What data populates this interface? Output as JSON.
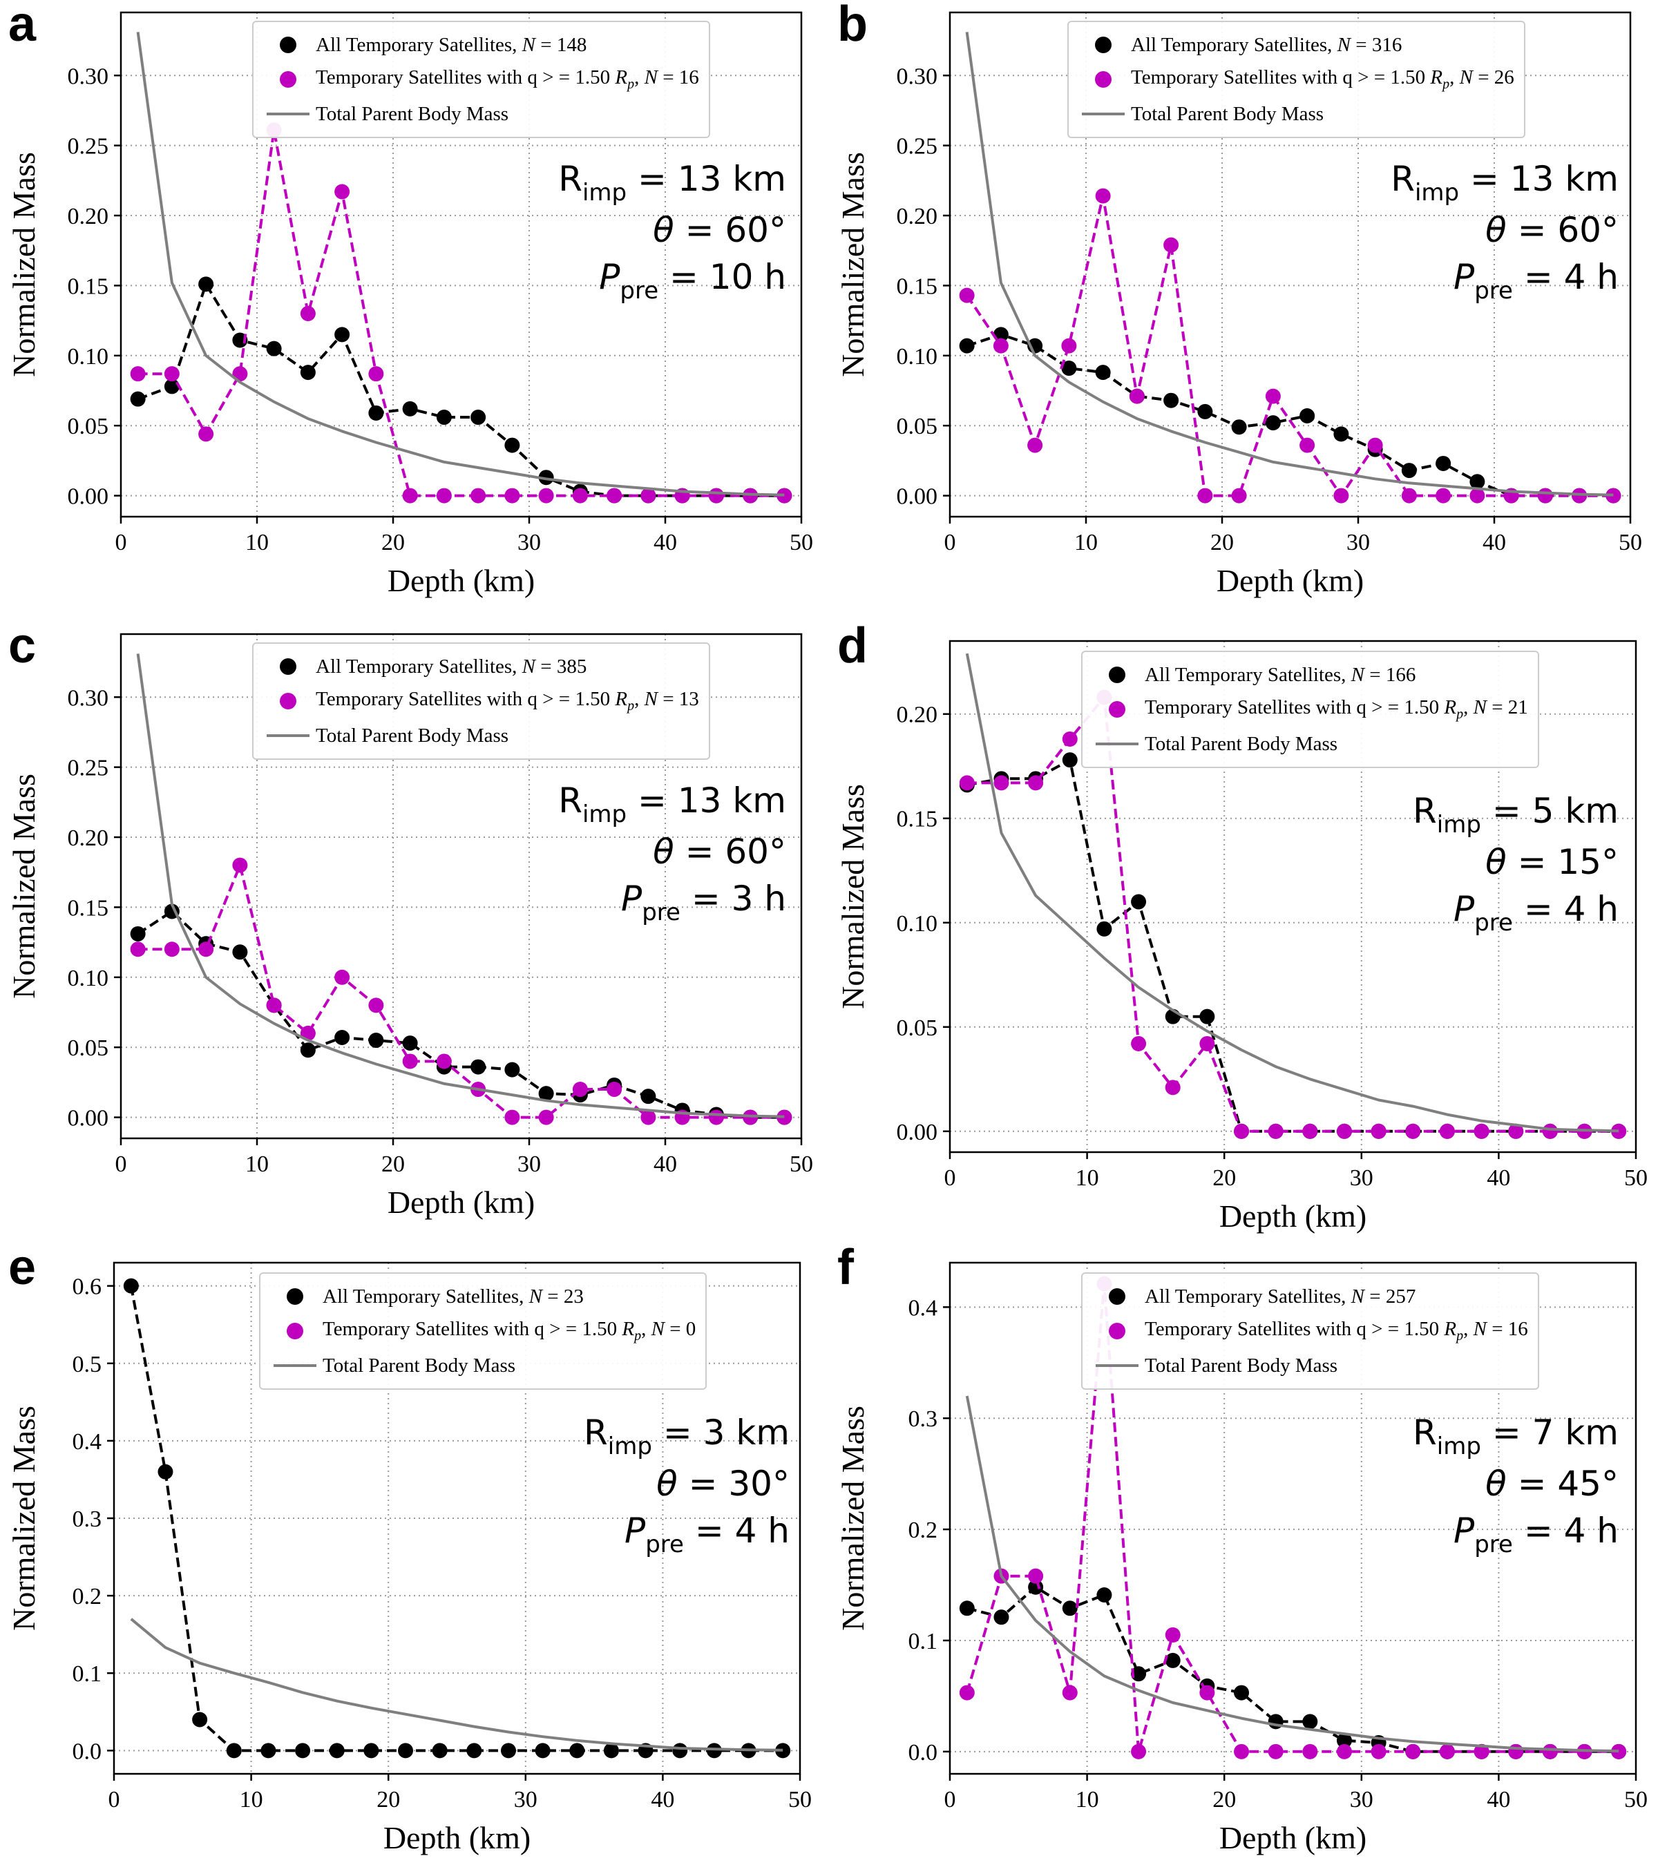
{
  "colors": {
    "all": "#000000",
    "high_q": "#bf00bf",
    "parent": "#7f7f7f",
    "grid": "#999999"
  },
  "chart_data": [
    {
      "id": "a",
      "type": "line",
      "letter": "a",
      "xlabel": "Depth (km)",
      "ylabel": "Normalized Mass",
      "xlim": [
        0,
        50
      ],
      "ylim": [
        -0.015,
        0.345
      ],
      "xticks": [
        0,
        10,
        20,
        30,
        40,
        50
      ],
      "xtick_labels": [
        "0",
        "10",
        "20",
        "30",
        "40",
        "50"
      ],
      "yticks": [
        0,
        0.05,
        0.1,
        0.15,
        0.2,
        0.25,
        0.3
      ],
      "ytick_labels": [
        "0.00",
        "0.05",
        "0.10",
        "0.15",
        "0.20",
        "0.25",
        "0.30"
      ],
      "x": [
        1.25,
        3.75,
        6.25,
        8.75,
        11.25,
        13.75,
        16.25,
        18.75,
        21.25,
        23.75,
        26.25,
        28.75,
        31.25,
        33.75,
        36.25,
        38.75,
        41.25,
        43.75,
        46.25,
        48.75
      ],
      "series": [
        {
          "name": "All Temporary Satellites",
          "n": "148",
          "style": "dashed-markers",
          "color": "#000000",
          "values": [
            0.069,
            0.078,
            0.151,
            0.111,
            0.105,
            0.088,
            0.115,
            0.059,
            0.062,
            0.056,
            0.056,
            0.036,
            0.013,
            0.003,
            0,
            0,
            0,
            0,
            0,
            0
          ]
        },
        {
          "name": "Temporary Satellites with q",
          "n": "16",
          "style": "dashed-markers",
          "color": "#bf00bf",
          "values": [
            0.087,
            0.087,
            0.044,
            0.087,
            0.261,
            0.13,
            0.217,
            0.087,
            0,
            0,
            0,
            0,
            0,
            0,
            0,
            0,
            0,
            0,
            0,
            0
          ]
        },
        {
          "name": "Total Parent Body Mass",
          "style": "line",
          "color": "#7f7f7f",
          "values": [
            0.331,
            0.152,
            0.1,
            0.081,
            0.067,
            0.055,
            0.046,
            0.038,
            0.031,
            0.024,
            0.02,
            0.016,
            0.012,
            0.009,
            0.007,
            0.005,
            0.003,
            0.002,
            0.001,
            0.0005
          ]
        }
      ],
      "legend": [
        {
          "prefix": "All Temporary Satellites, ",
          "nvar": "N",
          "mid": " = ",
          "nval": "148"
        },
        {
          "prefix": "Temporary Satellites with q > = 1.50 ",
          "rvar": "R",
          "rsub": "p",
          "mid": ", ",
          "nvar": "N",
          "eq": " = ",
          "nval": "16"
        },
        {
          "prefix": "Total Parent Body Mass"
        }
      ],
      "params": {
        "r_var": "R",
        "r_sub": "imp",
        "r_val": " = 13 km",
        "theta_var": "θ",
        "theta_val": " = 60°",
        "p_var": "P",
        "p_sub": "pre",
        "p_val": " = 10 h"
      }
    },
    {
      "id": "b",
      "type": "line",
      "letter": "b",
      "xlabel": "Depth (km)",
      "ylabel": "Normalized Mass",
      "xlim": [
        0,
        50
      ],
      "ylim": [
        -0.015,
        0.345
      ],
      "xticks": [
        0,
        10,
        20,
        30,
        40,
        50
      ],
      "xtick_labels": [
        "0",
        "10",
        "20",
        "30",
        "40",
        "50"
      ],
      "yticks": [
        0,
        0.05,
        0.1,
        0.15,
        0.2,
        0.25,
        0.3
      ],
      "ytick_labels": [
        "0.00",
        "0.05",
        "0.10",
        "0.15",
        "0.20",
        "0.25",
        "0.30"
      ],
      "x": [
        1.25,
        3.75,
        6.25,
        8.75,
        11.25,
        13.75,
        16.25,
        18.75,
        21.25,
        23.75,
        26.25,
        28.75,
        31.25,
        33.75,
        36.25,
        38.75,
        41.25,
        43.75,
        46.25,
        48.75
      ],
      "series": [
        {
          "name": "All Temporary Satellites",
          "n": "316",
          "style": "dashed-markers",
          "color": "#000000",
          "values": [
            0.107,
            0.115,
            0.107,
            0.091,
            0.088,
            0.071,
            0.068,
            0.06,
            0.049,
            0.052,
            0.057,
            0.044,
            0.033,
            0.018,
            0.023,
            0.01,
            0,
            0,
            0,
            0
          ]
        },
        {
          "name": "Temporary Satellites with q",
          "n": "26",
          "style": "dashed-markers",
          "color": "#bf00bf",
          "values": [
            0.143,
            0.107,
            0.036,
            0.107,
            0.214,
            0.071,
            0.179,
            0,
            0,
            0.071,
            0.036,
            0,
            0.036,
            0,
            0,
            0,
            0,
            0,
            0,
            0
          ]
        },
        {
          "name": "Total Parent Body Mass",
          "style": "line",
          "color": "#7f7f7f",
          "values": [
            0.331,
            0.152,
            0.1,
            0.081,
            0.067,
            0.055,
            0.046,
            0.038,
            0.031,
            0.024,
            0.02,
            0.016,
            0.012,
            0.009,
            0.007,
            0.005,
            0.003,
            0.002,
            0.001,
            0.0005
          ]
        }
      ],
      "legend": [
        {
          "prefix": "All Temporary Satellites, ",
          "nvar": "N",
          "mid": " = ",
          "nval": "316"
        },
        {
          "prefix": "Temporary Satellites with q > = 1.50 ",
          "rvar": "R",
          "rsub": "p",
          "mid": ", ",
          "nvar": "N",
          "eq": " = ",
          "nval": "26"
        },
        {
          "prefix": "Total Parent Body Mass"
        }
      ],
      "params": {
        "r_var": "R",
        "r_sub": "imp",
        "r_val": " = 13 km",
        "theta_var": "θ",
        "theta_val": " = 60°",
        "p_var": "P",
        "p_sub": "pre",
        "p_val": " = 4 h"
      }
    },
    {
      "id": "c",
      "type": "line",
      "letter": "c",
      "xlabel": "Depth (km)",
      "ylabel": "Normalized Mass",
      "xlim": [
        0,
        50
      ],
      "ylim": [
        -0.015,
        0.345
      ],
      "xticks": [
        0,
        10,
        20,
        30,
        40,
        50
      ],
      "xtick_labels": [
        "0",
        "10",
        "20",
        "30",
        "40",
        "50"
      ],
      "yticks": [
        0,
        0.05,
        0.1,
        0.15,
        0.2,
        0.25,
        0.3
      ],
      "ytick_labels": [
        "0.00",
        "0.05",
        "0.10",
        "0.15",
        "0.20",
        "0.25",
        "0.30"
      ],
      "x": [
        1.25,
        3.75,
        6.25,
        8.75,
        11.25,
        13.75,
        16.25,
        18.75,
        21.25,
        23.75,
        26.25,
        28.75,
        31.25,
        33.75,
        36.25,
        38.75,
        41.25,
        43.75,
        46.25,
        48.75
      ],
      "series": [
        {
          "name": "All Temporary Satellites",
          "n": "385",
          "style": "dashed-markers",
          "color": "#000000",
          "values": [
            0.131,
            0.147,
            0.124,
            0.118,
            0.08,
            0.048,
            0.057,
            0.055,
            0.053,
            0.036,
            0.036,
            0.034,
            0.017,
            0.016,
            0.023,
            0.015,
            0.005,
            0.002,
            0,
            0
          ]
        },
        {
          "name": "Temporary Satellites with q",
          "n": "13",
          "style": "dashed-markers",
          "color": "#bf00bf",
          "values": [
            0.12,
            0.12,
            0.12,
            0.18,
            0.08,
            0.06,
            0.1,
            0.08,
            0.04,
            0.04,
            0.02,
            0,
            0,
            0.02,
            0.02,
            0,
            0,
            0,
            0,
            0
          ]
        },
        {
          "name": "Total Parent Body Mass",
          "style": "line",
          "color": "#7f7f7f",
          "values": [
            0.331,
            0.152,
            0.1,
            0.081,
            0.067,
            0.055,
            0.046,
            0.038,
            0.031,
            0.024,
            0.02,
            0.016,
            0.012,
            0.009,
            0.007,
            0.005,
            0.003,
            0.002,
            0.001,
            0.0005
          ]
        }
      ],
      "legend": [
        {
          "prefix": "All Temporary Satellites, ",
          "nvar": "N",
          "mid": " = ",
          "nval": "385"
        },
        {
          "prefix": "Temporary Satellites with q > = 1.50 ",
          "rvar": "R",
          "rsub": "p",
          "mid": ", ",
          "nvar": "N",
          "eq": " = ",
          "nval": "13"
        },
        {
          "prefix": "Total Parent Body Mass"
        }
      ],
      "params": {
        "r_var": "R",
        "r_sub": "imp",
        "r_val": " = 13 km",
        "theta_var": "θ",
        "theta_val": " = 60°",
        "p_var": "P",
        "p_sub": "pre",
        "p_val": " = 3 h"
      }
    },
    {
      "id": "d",
      "type": "line",
      "letter": "d",
      "xlabel": "Depth (km)",
      "ylabel": "Normalized Mass",
      "xlim": [
        0,
        50
      ],
      "ylim": [
        -0.01,
        0.235
      ],
      "xticks": [
        0,
        10,
        20,
        30,
        40,
        50
      ],
      "xtick_labels": [
        "0",
        "10",
        "20",
        "30",
        "40",
        "50"
      ],
      "yticks": [
        0,
        0.05,
        0.1,
        0.15,
        0.2
      ],
      "ytick_labels": [
        "0.00",
        "0.05",
        "0.10",
        "0.15",
        "0.20"
      ],
      "x": [
        1.25,
        3.75,
        6.25,
        8.75,
        11.25,
        13.75,
        16.25,
        18.75,
        21.25,
        23.75,
        26.25,
        28.75,
        31.25,
        33.75,
        36.25,
        38.75,
        41.25,
        43.75,
        46.25,
        48.75
      ],
      "series": [
        {
          "name": "All Temporary Satellites",
          "n": "166",
          "style": "dashed-markers",
          "color": "#000000",
          "values": [
            0.166,
            0.169,
            0.169,
            0.178,
            0.097,
            0.11,
            0.055,
            0.055,
            0,
            0,
            0,
            0,
            0,
            0,
            0,
            0,
            0,
            0,
            0,
            0
          ]
        },
        {
          "name": "Temporary Satellites with q",
          "n": "21",
          "style": "dashed-markers",
          "color": "#bf00bf",
          "values": [
            0.167,
            0.167,
            0.167,
            0.188,
            0.208,
            0.042,
            0.021,
            0.042,
            0,
            0,
            0,
            0,
            0,
            0,
            0,
            0,
            0,
            0,
            0,
            0
          ]
        },
        {
          "name": "Total Parent Body Mass",
          "style": "line",
          "color": "#7f7f7f",
          "values": [
            0.229,
            0.143,
            0.113,
            0.098,
            0.083,
            0.069,
            0.058,
            0.048,
            0.039,
            0.031,
            0.025,
            0.02,
            0.015,
            0.012,
            0.008,
            0.005,
            0.003,
            0.001,
            0.0005,
            0.0002
          ]
        }
      ],
      "legend": [
        {
          "prefix": "All Temporary Satellites, ",
          "nvar": "N",
          "mid": " = ",
          "nval": "166"
        },
        {
          "prefix": "Temporary Satellites with q > = 1.50 ",
          "rvar": "R",
          "rsub": "p",
          "mid": ", ",
          "nvar": "N",
          "eq": " = ",
          "nval": "21"
        },
        {
          "prefix": "Total Parent Body Mass"
        }
      ],
      "params": {
        "r_var": "R",
        "r_sub": "imp",
        "r_val": " = 5 km",
        "theta_var": "θ",
        "theta_val": " = 15°",
        "p_var": "P",
        "p_sub": "pre",
        "p_val": " = 4 h"
      }
    },
    {
      "id": "e",
      "type": "line",
      "letter": "e",
      "xlabel": "Depth (km)",
      "ylabel": "Normalized Mass",
      "xlim": [
        0,
        50
      ],
      "ylim": [
        -0.03,
        0.63
      ],
      "xticks": [
        0,
        10,
        20,
        30,
        40,
        50
      ],
      "xtick_labels": [
        "0",
        "10",
        "20",
        "30",
        "40",
        "50"
      ],
      "yticks": [
        0,
        0.1,
        0.2,
        0.3,
        0.4,
        0.5,
        0.6
      ],
      "ytick_labels": [
        "0.0",
        "0.1",
        "0.2",
        "0.3",
        "0.4",
        "0.5",
        "0.6"
      ],
      "x": [
        1.25,
        3.75,
        6.25,
        8.75,
        11.25,
        13.75,
        16.25,
        18.75,
        21.25,
        23.75,
        26.25,
        28.75,
        31.25,
        33.75,
        36.25,
        38.75,
        41.25,
        43.75,
        46.25,
        48.75
      ],
      "series": [
        {
          "name": "All Temporary Satellites",
          "n": "23",
          "style": "dashed-markers",
          "color": "#000000",
          "values": [
            0.6,
            0.36,
            0.04,
            0,
            0,
            0,
            0,
            0,
            0,
            0,
            0,
            0,
            0,
            0,
            0,
            0,
            0,
            0,
            0,
            0
          ]
        },
        {
          "name": "Total Parent Body Mass",
          "style": "line",
          "color": "#7f7f7f",
          "values": [
            0.17,
            0.133,
            0.113,
            0.1,
            0.088,
            0.075,
            0.064,
            0.055,
            0.047,
            0.039,
            0.031,
            0.024,
            0.018,
            0.013,
            0.009,
            0.006,
            0.003,
            0.002,
            0.001,
            0.0005
          ]
        }
      ],
      "legend": [
        {
          "prefix": "All Temporary Satellites, ",
          "nvar": "N",
          "mid": " = ",
          "nval": "23"
        },
        {
          "prefix": "Temporary Satellites with q > = 1.50 ",
          "rvar": "R",
          "rsub": "p",
          "mid": ", ",
          "nvar": "N",
          "eq": " = ",
          "nval": "0"
        },
        {
          "prefix": "Total Parent Body Mass"
        }
      ],
      "params": {
        "r_var": "R",
        "r_sub": "imp",
        "r_val": " = 3 km",
        "theta_var": "θ",
        "theta_val": " = 30°",
        "p_var": "P",
        "p_sub": "pre",
        "p_val": " = 4 h"
      }
    },
    {
      "id": "f",
      "type": "line",
      "letter": "f",
      "xlabel": "Depth (km)",
      "ylabel": "Normalized Mass",
      "xlim": [
        0,
        50
      ],
      "ylim": [
        -0.02,
        0.44
      ],
      "xticks": [
        0,
        10,
        20,
        30,
        40,
        50
      ],
      "xtick_labels": [
        "0",
        "10",
        "20",
        "30",
        "40",
        "50"
      ],
      "yticks": [
        0,
        0.1,
        0.2,
        0.3,
        0.4
      ],
      "ytick_labels": [
        "0.0",
        "0.1",
        "0.2",
        "0.3",
        "0.4"
      ],
      "x": [
        1.25,
        3.75,
        6.25,
        8.75,
        11.25,
        13.75,
        16.25,
        18.75,
        21.25,
        23.75,
        26.25,
        28.75,
        31.25,
        33.75,
        36.25,
        38.75,
        41.25,
        43.75,
        46.25,
        48.75
      ],
      "series": [
        {
          "name": "All Temporary Satellites",
          "n": "257",
          "style": "dashed-markers",
          "color": "#000000",
          "values": [
            0.129,
            0.121,
            0.148,
            0.129,
            0.141,
            0.07,
            0.082,
            0.059,
            0.053,
            0.027,
            0.027,
            0.01,
            0.008,
            0,
            0,
            0,
            0,
            0,
            0,
            0
          ]
        },
        {
          "name": "Temporary Satellites with q",
          "n": "16",
          "style": "dashed-markers",
          "color": "#bf00bf",
          "values": [
            0.053,
            0.158,
            0.158,
            0.053,
            0.421,
            0,
            0.105,
            0.053,
            0,
            0,
            0,
            0,
            0,
            0,
            0,
            0,
            0,
            0,
            0,
            0
          ]
        },
        {
          "name": "Total Parent Body Mass",
          "style": "line",
          "color": "#7f7f7f",
          "values": [
            0.32,
            0.158,
            0.118,
            0.09,
            0.068,
            0.055,
            0.044,
            0.037,
            0.03,
            0.024,
            0.02,
            0.016,
            0.012,
            0.009,
            0.007,
            0.005,
            0.003,
            0.002,
            0.001,
            0.0005
          ]
        }
      ],
      "legend": [
        {
          "prefix": "All Temporary Satellites, ",
          "nvar": "N",
          "mid": " = ",
          "nval": "257"
        },
        {
          "prefix": "Temporary Satellites with q > = 1.50 ",
          "rvar": "R",
          "rsub": "p",
          "mid": ", ",
          "nvar": "N",
          "eq": " = ",
          "nval": "16"
        },
        {
          "prefix": "Total Parent Body Mass"
        }
      ],
      "params": {
        "r_var": "R",
        "r_sub": "imp",
        "r_val": " = 7 km",
        "theta_var": "θ",
        "theta_val": " = 45°",
        "p_var": "P",
        "p_sub": "pre",
        "p_val": " = 4 h"
      }
    }
  ]
}
